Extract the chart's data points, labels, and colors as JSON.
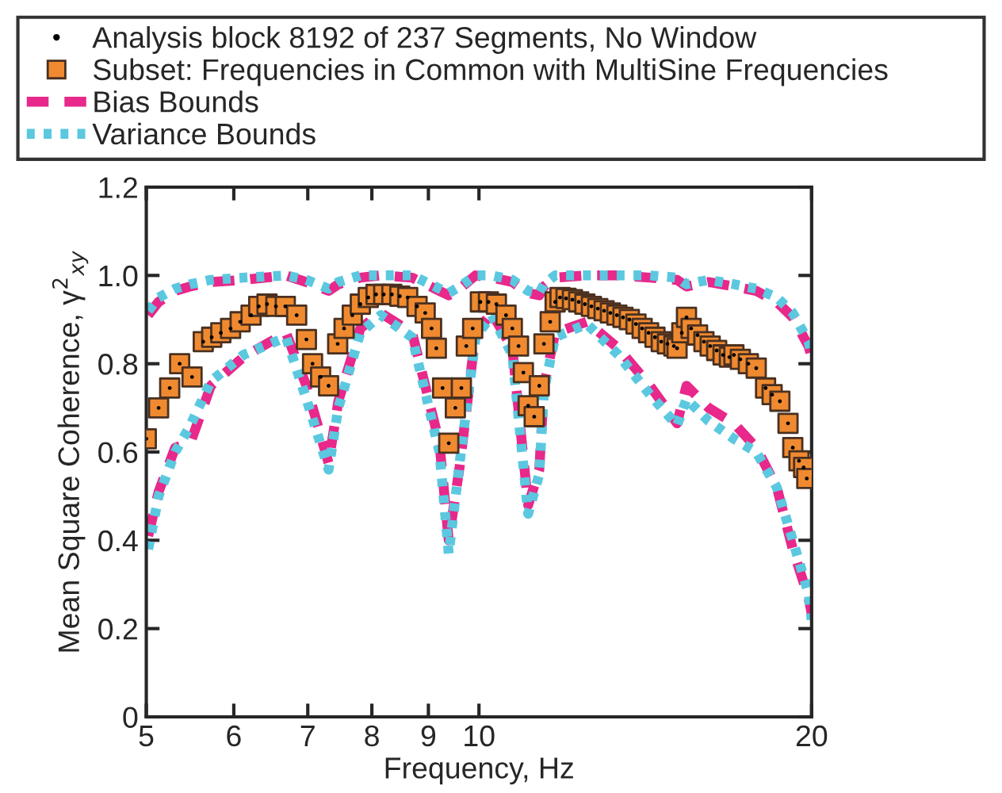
{
  "chart_data": {
    "type": "scatter",
    "xlabel": "Frequency, Hz",
    "ylabel": "Mean Square Coherence, γ$^{2}$$_{xy}$",
    "log": "x",
    "xlim": [
      5,
      20
    ],
    "xticks": [
      5,
      6,
      7,
      8,
      9,
      10,
      20
    ],
    "ylim": [
      0,
      1.2
    ],
    "yticks": [
      0,
      0.2,
      0.4,
      0.6,
      0.8,
      {
        "value": 1.0,
        "label": "1.0"
      },
      1.2
    ],
    "grid": false,
    "legend": "top",
    "series": [
      {
        "name": null,
        "type": "line",
        "line_style": "dashed",
        "color": "#e8288a",
        "x": [
          5.02,
          5.13,
          5.31,
          5.48,
          5.72,
          6.12,
          6.69,
          6.98,
          7.31,
          7.46,
          7.81,
          8.15,
          8.7,
          9.21,
          9.39,
          9.61,
          9.93,
          10.27,
          10.72,
          11.08,
          11.34,
          11.45,
          11.72,
          12.52,
          13.37,
          14.28,
          15.11,
          15.41,
          16.14,
          17.01,
          17.82,
          18.6,
          19.23,
          19.87,
          20
        ],
        "values": [
          0.91,
          0.94,
          0.965,
          0.975,
          0.985,
          0.99,
          1.0,
          0.985,
          0.965,
          0.98,
          0.995,
          1.0,
          0.995,
          0.965,
          0.955,
          0.97,
          1.0,
          0.995,
          0.985,
          0.96,
          0.955,
          0.975,
          0.995,
          1.0,
          1.0,
          0.995,
          0.99,
          0.975,
          0.985,
          0.975,
          0.965,
          0.94,
          0.905,
          0.84,
          0.815
        ]
      },
      {
        "name": null,
        "type": "line",
        "line_style": "dotted",
        "color": "#5bc8e0",
        "x": [
          5.02,
          5.13,
          5.31,
          5.48,
          5.72,
          6.12,
          6.69,
          6.98,
          7.31,
          7.46,
          7.81,
          8.15,
          8.7,
          9.21,
          9.39,
          9.61,
          9.93,
          10.27,
          10.72,
          11.08,
          11.34,
          11.45,
          11.72,
          12.52,
          13.37,
          14.28,
          15.11,
          15.41,
          16.14,
          17.01,
          17.82,
          18.6,
          19.23,
          19.87,
          20
        ],
        "values": [
          0.92,
          0.95,
          0.97,
          0.98,
          0.99,
          0.995,
          1.0,
          0.99,
          0.97,
          0.985,
          1.0,
          1.0,
          1.0,
          0.97,
          0.96,
          0.975,
          1.0,
          1.0,
          0.99,
          0.965,
          0.96,
          0.98,
          1.0,
          1.0,
          1.0,
          1.0,
          0.995,
          0.98,
          0.99,
          0.98,
          0.97,
          0.95,
          0.915,
          0.85,
          0.82
        ]
      },
      {
        "name": "Bias Bounds",
        "type": "line",
        "line_style": "dashed",
        "color": "#e8288a",
        "x": [
          5.02,
          5.13,
          5.31,
          5.48,
          5.72,
          6.12,
          6.69,
          6.98,
          7.31,
          7.46,
          7.81,
          8.15,
          8.7,
          9.21,
          9.39,
          9.61,
          9.93,
          10.27,
          10.72,
          11.08,
          11.34,
          11.45,
          11.72,
          12.52,
          13.37,
          14.28,
          15.11,
          15.41,
          16.14,
          17.01,
          17.82,
          18.6,
          19.23,
          19.87,
          20
        ],
        "values": [
          0.41,
          0.51,
          0.61,
          0.62,
          0.75,
          0.815,
          0.87,
          0.75,
          0.575,
          0.715,
          0.88,
          0.915,
          0.87,
          0.62,
          0.4,
          0.57,
          0.87,
          0.915,
          0.835,
          0.48,
          0.56,
          0.75,
          0.87,
          0.895,
          0.835,
          0.75,
          0.665,
          0.75,
          0.7,
          0.665,
          0.61,
          0.52,
          0.38,
          0.27,
          0.235
        ]
      },
      {
        "name": "Variance Bounds",
        "type": "line",
        "line_style": "dotted",
        "color": "#5bc8e0",
        "x": [
          5.02,
          5.13,
          5.31,
          5.48,
          5.72,
          6.12,
          6.69,
          6.98,
          7.31,
          7.46,
          7.81,
          8.15,
          8.7,
          9.21,
          9.39,
          9.61,
          9.93,
          10.27,
          10.72,
          11.08,
          11.34,
          11.45,
          11.72,
          12.52,
          13.37,
          14.28,
          15.11,
          15.41,
          16.14,
          17.01,
          17.82,
          18.6,
          19.23,
          19.87,
          20
        ],
        "values": [
          0.38,
          0.5,
          0.6,
          0.66,
          0.76,
          0.82,
          0.86,
          0.72,
          0.56,
          0.7,
          0.87,
          0.91,
          0.86,
          0.6,
          0.37,
          0.58,
          0.86,
          0.91,
          0.82,
          0.46,
          0.55,
          0.74,
          0.86,
          0.89,
          0.82,
          0.73,
          0.66,
          0.72,
          0.67,
          0.63,
          0.6,
          0.52,
          0.4,
          0.28,
          0.22
        ]
      },
      {
        "name": "Subset: Frequencies in Common with MultiSine Frequencies",
        "marker": "square",
        "color": "#f08a30",
        "x": [
          5.0,
          5.13,
          5.25,
          5.36,
          5.5,
          5.63,
          5.73,
          5.84,
          5.96,
          6.08,
          6.22,
          6.32,
          6.43,
          6.55,
          6.68,
          6.84,
          6.98,
          7.07,
          7.19,
          7.31,
          7.45,
          7.55,
          7.68,
          7.81,
          7.94,
          8.07,
          8.2,
          8.34,
          8.48,
          8.62,
          8.79,
          8.94,
          9.06,
          9.15,
          9.27,
          9.39,
          9.52,
          9.64,
          9.74,
          9.87,
          10.03,
          10.2,
          10.37,
          10.58,
          10.72,
          10.86,
          10.97,
          11.08,
          11.22,
          11.34,
          11.45,
          11.6,
          11.72,
          11.84,
          11.99,
          12.15,
          12.31,
          12.47,
          12.64,
          12.81,
          12.98,
          13.15,
          13.33,
          13.5,
          13.68,
          13.87,
          14.05,
          14.24,
          14.43,
          14.62,
          14.81,
          15.01,
          15.11,
          15.26,
          15.41,
          15.56,
          15.77,
          15.98,
          16.19,
          16.41,
          16.63,
          16.85,
          17.01,
          17.24,
          17.53,
          17.82,
          18.17,
          18.42,
          18.72,
          19.04,
          19.23,
          19.48,
          19.67,
          19.8
        ],
        "values": [
          0.63,
          0.7,
          0.745,
          0.8,
          0.77,
          0.85,
          0.86,
          0.87,
          0.88,
          0.895,
          0.91,
          0.93,
          0.935,
          0.93,
          0.93,
          0.91,
          0.855,
          0.8,
          0.77,
          0.75,
          0.845,
          0.88,
          0.91,
          0.935,
          0.95,
          0.957,
          0.957,
          0.957,
          0.953,
          0.95,
          0.93,
          0.915,
          0.88,
          0.835,
          0.745,
          0.62,
          0.7,
          0.745,
          0.84,
          0.88,
          0.94,
          0.94,
          0.935,
          0.91,
          0.88,
          0.84,
          0.78,
          0.705,
          0.68,
          0.75,
          0.845,
          0.895,
          0.94,
          0.95,
          0.948,
          0.945,
          0.94,
          0.935,
          0.93,
          0.925,
          0.92,
          0.915,
          0.91,
          0.905,
          0.9,
          0.89,
          0.88,
          0.87,
          0.86,
          0.85,
          0.845,
          0.84,
          0.835,
          0.87,
          0.905,
          0.88,
          0.865,
          0.85,
          0.84,
          0.83,
          0.82,
          0.815,
          0.82,
          0.81,
          0.8,
          0.79,
          0.745,
          0.73,
          0.715,
          0.665,
          0.61,
          0.58,
          0.565,
          0.54
        ]
      },
      {
        "name": "Analysis block 8192 of 237 Segments, No Window",
        "marker": "circle",
        "color": "#000000",
        "x": [
          5.0,
          5.13,
          5.25,
          5.36,
          5.5,
          5.63,
          5.73,
          5.84,
          5.96,
          6.08,
          6.22,
          6.32,
          6.43,
          6.55,
          6.68,
          6.84,
          6.98,
          7.07,
          7.19,
          7.31,
          7.45,
          7.55,
          7.68,
          7.81,
          7.94,
          8.07,
          8.2,
          8.34,
          8.48,
          8.62,
          8.79,
          8.94,
          9.06,
          9.15,
          9.27,
          9.39,
          9.52,
          9.64,
          9.74,
          9.87,
          10.03,
          10.2,
          10.37,
          10.58,
          10.72,
          10.86,
          10.97,
          11.08,
          11.22,
          11.34,
          11.45,
          11.6,
          11.72,
          11.84,
          11.99,
          12.15,
          12.31,
          12.47,
          12.64,
          12.81,
          12.98,
          13.15,
          13.33,
          13.5,
          13.68,
          13.87,
          14.05,
          14.24,
          14.43,
          14.62,
          14.81,
          15.01,
          15.11,
          15.26,
          15.41,
          15.56,
          15.77,
          15.98,
          16.19,
          16.41,
          16.63,
          16.85,
          17.01,
          17.24,
          17.53,
          17.82,
          18.17,
          18.42,
          18.72,
          19.04,
          19.23,
          19.48,
          19.67,
          19.8
        ],
        "values": [
          0.63,
          0.7,
          0.745,
          0.8,
          0.77,
          0.85,
          0.86,
          0.87,
          0.88,
          0.895,
          0.91,
          0.93,
          0.935,
          0.93,
          0.93,
          0.91,
          0.855,
          0.8,
          0.77,
          0.75,
          0.845,
          0.88,
          0.91,
          0.935,
          0.95,
          0.957,
          0.957,
          0.957,
          0.953,
          0.95,
          0.93,
          0.915,
          0.88,
          0.835,
          0.745,
          0.62,
          0.7,
          0.745,
          0.84,
          0.88,
          0.94,
          0.94,
          0.935,
          0.91,
          0.88,
          0.84,
          0.78,
          0.705,
          0.68,
          0.75,
          0.845,
          0.895,
          0.94,
          0.95,
          0.948,
          0.945,
          0.94,
          0.935,
          0.93,
          0.925,
          0.92,
          0.915,
          0.91,
          0.905,
          0.9,
          0.89,
          0.88,
          0.87,
          0.86,
          0.85,
          0.845,
          0.84,
          0.835,
          0.87,
          0.905,
          0.88,
          0.865,
          0.85,
          0.84,
          0.83,
          0.82,
          0.815,
          0.82,
          0.81,
          0.8,
          0.79,
          0.745,
          0.73,
          0.715,
          0.665,
          0.61,
          0.58,
          0.565,
          0.54
        ]
      }
    ]
  }
}
